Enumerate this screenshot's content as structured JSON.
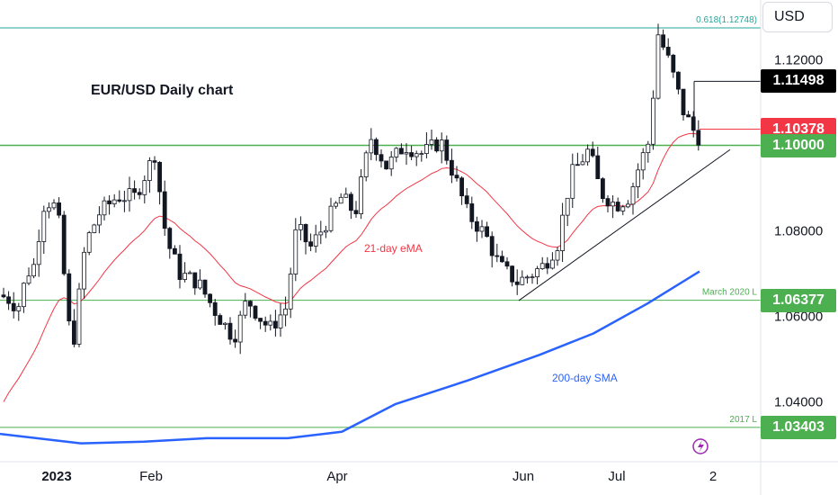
{
  "header": {
    "currency_button": "USD"
  },
  "chart_data": {
    "type": "candlestick",
    "title": "EUR/USD Daily chart",
    "x_tick_labels": [
      "2023",
      "Feb",
      "Apr",
      "Jun",
      "Jul",
      "2"
    ],
    "y_tick_labels": [
      "1.12000",
      "1.08000",
      "1.06000",
      "1.04000"
    ],
    "y_ticks": [
      1.12,
      1.08,
      1.06,
      1.04
    ],
    "ylim": [
      1.026,
      1.134
    ],
    "grid": false,
    "colors": {
      "up": "#131722",
      "down": "#131722",
      "ema": "#f23645",
      "sma": "#2962ff",
      "levels": "#4caf50",
      "fib": "#26a69a"
    },
    "ohlc": [],
    "horizontal_levels": [
      {
        "label": "0.618(1.12748)",
        "value": 1.12748,
        "badge": ""
      },
      {
        "label": "",
        "value": 1.11498,
        "badge": "1.11498"
      },
      {
        "label": "",
        "value": 1.10378,
        "badge": "1.10378"
      },
      {
        "label": "",
        "value": 1.1,
        "badge": "1.10000"
      },
      {
        "label": "March 2020 L",
        "value": 1.06377,
        "badge": "1.06377"
      },
      {
        "label": "2017 L",
        "value": 1.03403,
        "badge": "1.03403"
      }
    ],
    "indicators": [
      {
        "name": "21-day eMA",
        "color": "#f23645"
      },
      {
        "name": "200-day SMA",
        "color": "#2962ff"
      }
    ],
    "trendline": {
      "from": [
        1.0637,
        "Jun"
      ],
      "to": [
        1.1,
        "2"
      ]
    }
  }
}
